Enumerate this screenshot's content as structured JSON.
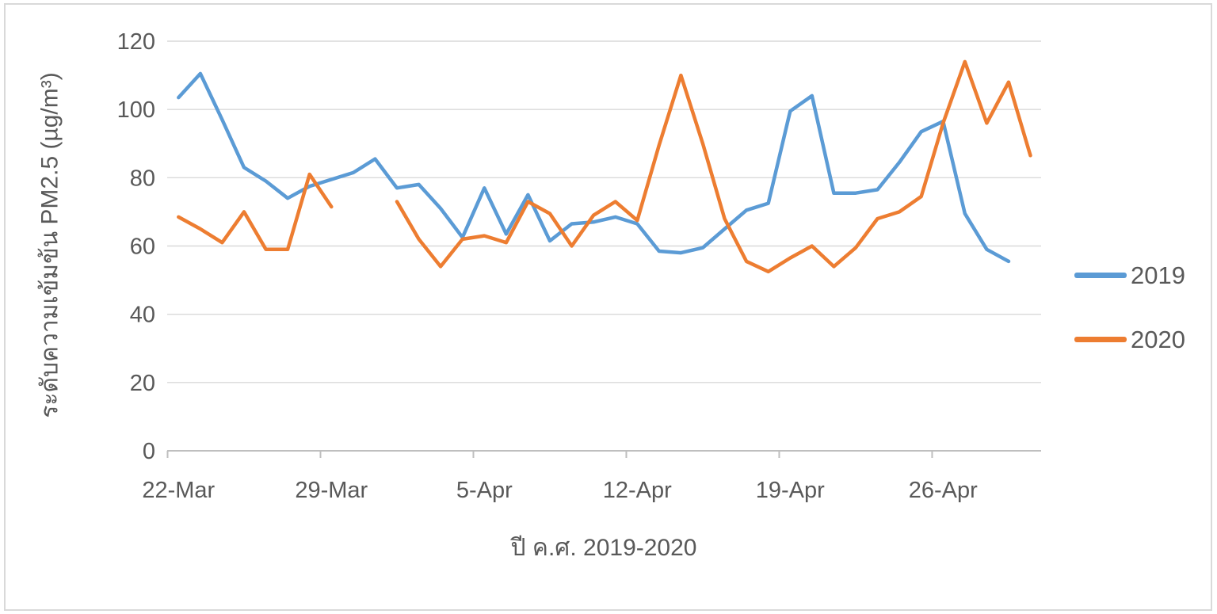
{
  "chart_data": {
    "type": "line",
    "title": "",
    "x_axis": {
      "title": "ปี ค.ศ. 2019-2020",
      "tick_labels": [
        "22-Mar",
        "29-Mar",
        "5-Apr",
        "12-Apr",
        "19-Apr",
        "26-Apr"
      ],
      "categories": [
        "22-Mar",
        "23-Mar",
        "24-Mar",
        "25-Mar",
        "26-Mar",
        "27-Mar",
        "28-Mar",
        "29-Mar",
        "30-Mar",
        "31-Mar",
        "1-Apr",
        "2-Apr",
        "3-Apr",
        "4-Apr",
        "5-Apr",
        "6-Apr",
        "7-Apr",
        "8-Apr",
        "9-Apr",
        "10-Apr",
        "11-Apr",
        "12-Apr",
        "13-Apr",
        "14-Apr",
        "15-Apr",
        "16-Apr",
        "17-Apr",
        "18-Apr",
        "19-Apr",
        "20-Apr",
        "21-Apr",
        "22-Apr",
        "23-Apr",
        "24-Apr",
        "25-Apr",
        "26-Apr",
        "27-Apr",
        "28-Apr",
        "29-Apr",
        "30-Apr"
      ]
    },
    "y_axis": {
      "title": "ระดับความเข้มข้น PM2.5 (µg/m³)",
      "ticks": [
        0,
        20,
        40,
        60,
        80,
        100,
        120
      ],
      "range": [
        0,
        120
      ]
    },
    "series": [
      {
        "name": "2019",
        "color": "#5B9BD5",
        "values": [
          103.5,
          110.5,
          97,
          83,
          79,
          74,
          77.5,
          79.5,
          81.5,
          85.5,
          77,
          78,
          71,
          62.5,
          77,
          63.5,
          75,
          61.5,
          66.5,
          67,
          68.5,
          66.5,
          58.5,
          58,
          59.5,
          65,
          70.5,
          72.5,
          99.5,
          104,
          75.5,
          75.5,
          76.5,
          84.5,
          93.5,
          96.5,
          69.5,
          59,
          55.5,
          null
        ]
      },
      {
        "name": "2020",
        "color": "#ED7D31",
        "values": [
          68.5,
          65,
          61,
          70,
          59,
          59,
          81,
          71.5,
          null,
          null,
          73,
          62,
          54,
          62,
          63,
          61,
          73,
          69.5,
          60,
          69,
          73,
          67.5,
          89.5,
          110,
          90,
          68,
          55.5,
          52.5,
          56.5,
          60,
          54,
          59.5,
          68,
          70,
          74.5,
          96,
          114,
          96,
          108,
          86.5
        ]
      }
    ],
    "legend_position": "right",
    "grid": "horizontal",
    "grid_color": "#D9D9D9",
    "axis_line_color": "#BFBFBF",
    "text_color": "#595959"
  }
}
